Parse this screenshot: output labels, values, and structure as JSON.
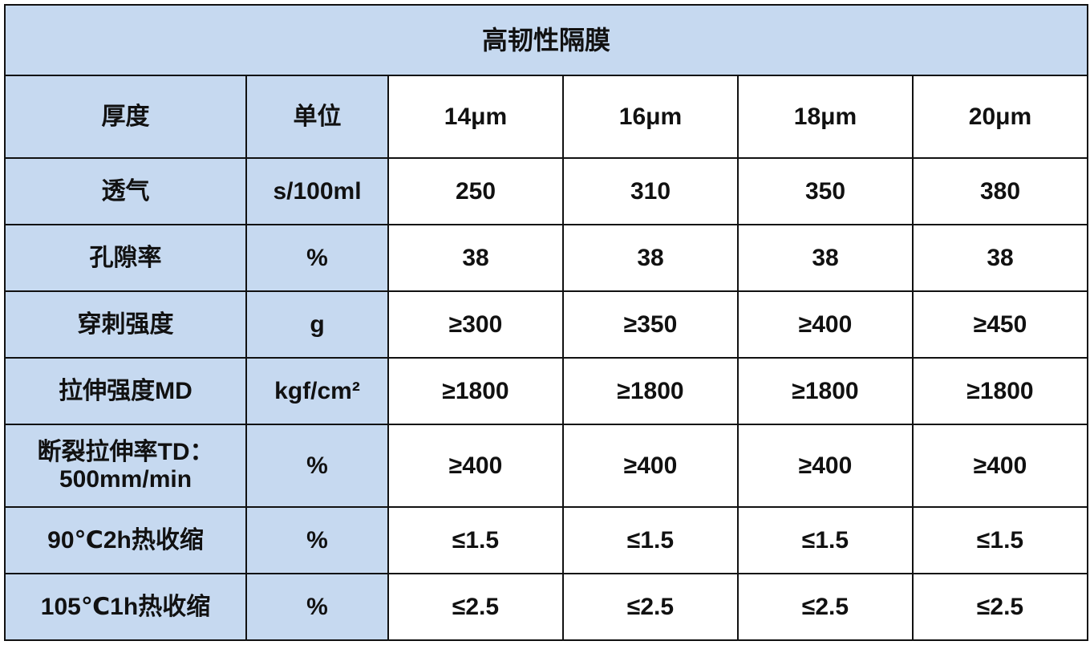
{
  "title": "高韧性隔膜",
  "header": {
    "col1": "厚度",
    "col2": "单位",
    "thicknesses": [
      "14μm",
      "16μm",
      "18μm",
      "20μm"
    ]
  },
  "rows": [
    {
      "name": "透气",
      "unit": "s/100ml",
      "values": [
        "250",
        "310",
        "350",
        "380"
      ]
    },
    {
      "name": "孔隙率",
      "unit": "%",
      "values": [
        "38",
        "38",
        "38",
        "38"
      ]
    },
    {
      "name": "穿刺强度",
      "unit": "g",
      "values": [
        "≥300",
        "≥350",
        "≥400",
        "≥450"
      ]
    },
    {
      "name": "拉伸强度MD",
      "unit": "kgf/cm²",
      "values": [
        "≥1800",
        "≥1800",
        "≥1800",
        "≥1800"
      ]
    },
    {
      "name": "断裂拉伸率TD：",
      "name_line2": "500mm/min",
      "unit": "%",
      "values": [
        "≥400",
        "≥400",
        "≥400",
        "≥400"
      ]
    },
    {
      "name": "90℃2h热收缩",
      "unit": "%",
      "values": [
        "≤1.5",
        "≤1.5",
        "≤1.5",
        "≤1.5"
      ]
    },
    {
      "name": "105℃1h热收缩",
      "unit": "%",
      "values": [
        "≤2.5",
        "≤2.5",
        "≤2.5",
        "≤2.5"
      ]
    }
  ],
  "colors": {
    "header_fill": "#c6d9f0",
    "border": "#111111"
  }
}
